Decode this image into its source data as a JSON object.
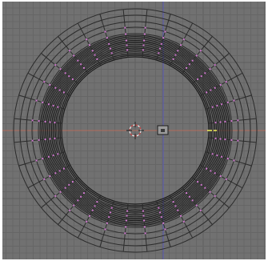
{
  "viewport": {
    "view": "top-orthographic",
    "colors": {
      "background": "#717171",
      "grid": "#666666",
      "grid_major": "#5e5e5e",
      "wire": "#2b2b2b",
      "wire_dense": "#1a1a1a",
      "vertex": "#d07ad0",
      "x_axis": "#b36a5a",
      "y_axis": "#5a5ab8",
      "selected_edge": "#f2f25a",
      "cursor_red": "#c84040",
      "cursor_white": "#f0f0f0"
    },
    "mesh": {
      "name": "torus",
      "segments": 32
    },
    "icons": [
      "3d-cursor-icon",
      "object-center-icon"
    ]
  }
}
